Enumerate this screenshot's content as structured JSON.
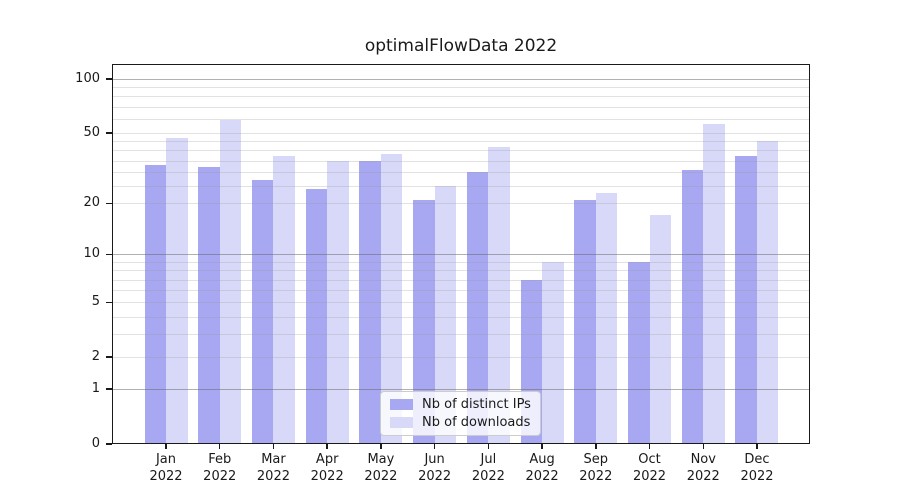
{
  "chart_data": {
    "type": "bar",
    "title": "optimalFlowData 2022",
    "categories": [
      "Jan",
      "Feb",
      "Mar",
      "Apr",
      "May",
      "Jun",
      "Jul",
      "Aug",
      "Sep",
      "Oct",
      "Nov",
      "Dec"
    ],
    "x_tick_year": "2022",
    "series": [
      {
        "name": "Nb of distinct IPs",
        "color": "#a8a8f2",
        "values": [
          33,
          32,
          27,
          24,
          35,
          21,
          30,
          7,
          21,
          9,
          31,
          37
        ]
      },
      {
        "name": "Nb of downloads",
        "color": "#d8d8f8",
        "values": [
          47,
          59,
          37,
          35,
          38,
          25,
          42,
          9,
          23,
          17,
          56,
          45
        ]
      }
    ],
    "y_scale": "log1p",
    "y_ticks": [
      0,
      1,
      2,
      5,
      10,
      20,
      50,
      100
    ],
    "gridlines": {
      "major": [
        1,
        10,
        100
      ],
      "minor": [
        2,
        3,
        4,
        5,
        6,
        7,
        8,
        9,
        20,
        25,
        30,
        35,
        40,
        45,
        50,
        60,
        70,
        80,
        90
      ]
    },
    "grid": true,
    "legend_position": "lower center",
    "colors": {
      "major_grid": "#b0b0b0",
      "minor_grid": "#e6e6e6",
      "axis": "#1a1a1a",
      "text": "#1a1a1a"
    }
  }
}
